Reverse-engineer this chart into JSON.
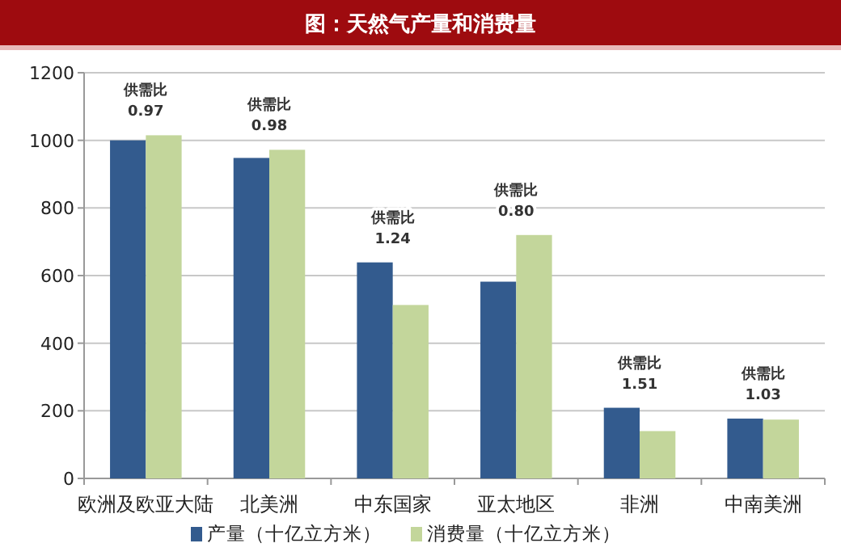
{
  "chart_data": {
    "type": "bar",
    "title": "图：天然气产量和消费量",
    "categories": [
      "欧洲及欧亚大陆",
      "北美洲",
      "中东国家",
      "亚太地区",
      "非洲",
      "中南美洲"
    ],
    "series": [
      {
        "name": "产量（十亿立方米）",
        "color": "#335b8e",
        "values": [
          1000,
          948,
          639,
          582,
          209,
          177
        ]
      },
      {
        "name": "消费量（十亿立方米）",
        "color": "#c3d69b",
        "values": [
          1015,
          972,
          513,
          720,
          140,
          174
        ]
      }
    ],
    "ylim": [
      0,
      1200
    ],
    "yticks": [
      0,
      200,
      400,
      600,
      800,
      1000,
      1200
    ],
    "grid": "y",
    "legend": "bottom",
    "annotations": [
      "供需比\n0.97",
      "供需比\n0.98",
      "供需比\n1.24",
      "供需比\n0.80",
      "供需比\n1.51",
      "供需比\n1.03"
    ]
  }
}
